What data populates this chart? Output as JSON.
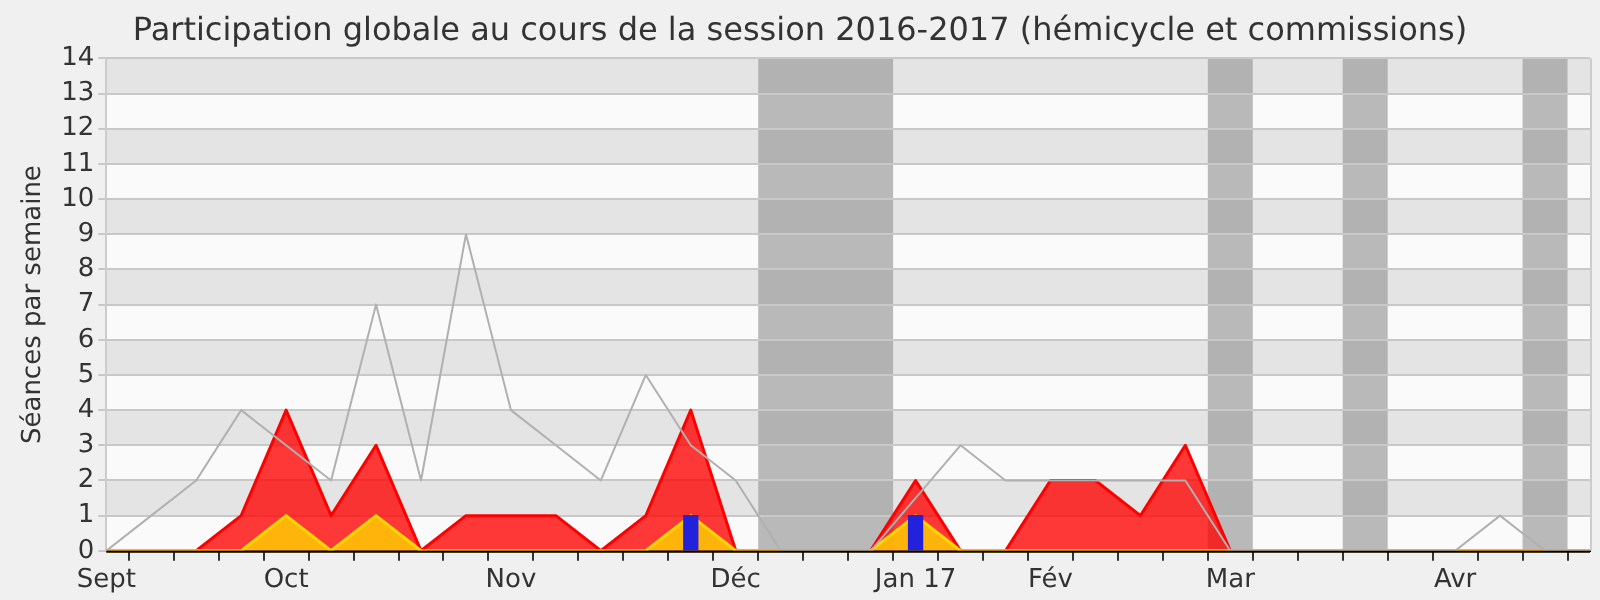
{
  "chart_data": {
    "type": "area",
    "title": "Participation globale au cours de la session 2016-2017 (hémicycle et commissions)",
    "ylabel": "Séances par semaine",
    "categories": [
      "Sept",
      null,
      null,
      null,
      "Oct",
      null,
      null,
      null,
      null,
      "Nov",
      null,
      null,
      null,
      null,
      "Déc",
      null,
      null,
      null,
      "Jan 17",
      null,
      null,
      "Fév",
      null,
      null,
      null,
      "Mar",
      null,
      null,
      null,
      null,
      "Avr",
      null,
      null,
      null
    ],
    "series": [
      {
        "type": "line",
        "color": "#b0b0b0",
        "values": [
          0,
          1,
          2,
          4,
          3,
          2,
          7,
          2,
          9,
          4,
          3,
          2,
          5,
          3,
          2,
          0,
          0,
          0,
          null,
          3,
          2,
          2,
          2,
          2,
          2,
          0,
          0,
          0,
          0,
          0,
          0,
          1,
          0,
          0
        ]
      },
      {
        "color": "#ff0000",
        "values": [
          0,
          0,
          0,
          1,
          4,
          1,
          3,
          0,
          1,
          1,
          1,
          0,
          1,
          4,
          0,
          0,
          0,
          0,
          2,
          0,
          0,
          2,
          2,
          1,
          3,
          0,
          0,
          0,
          0,
          0,
          0,
          0,
          0,
          0
        ]
      },
      {
        "color": "#ffd700",
        "values": [
          0,
          0,
          0,
          0,
          1,
          0,
          1,
          0,
          0,
          0,
          0,
          0,
          0,
          1,
          0,
          0,
          0,
          0,
          1,
          0,
          0,
          0,
          0,
          0,
          0,
          0,
          0,
          0,
          0,
          0,
          0,
          0,
          0,
          0
        ]
      },
      {
        "type": "bar",
        "color": "#2222dd",
        "values": [
          null,
          null,
          null,
          null,
          null,
          null,
          null,
          null,
          null,
          null,
          null,
          null,
          null,
          1,
          null,
          null,
          null,
          null,
          1,
          null,
          null,
          null,
          null,
          null,
          null,
          null,
          null,
          null,
          null,
          null,
          null,
          null,
          null,
          null
        ]
      }
    ],
    "ylim": [
      0,
      14
    ],
    "yticks": [
      0,
      1,
      2,
      3,
      4,
      5,
      6,
      7,
      8,
      9,
      10,
      11,
      12,
      13,
      14
    ],
    "grid": "y",
    "legend": false,
    "marker": "none"
  }
}
